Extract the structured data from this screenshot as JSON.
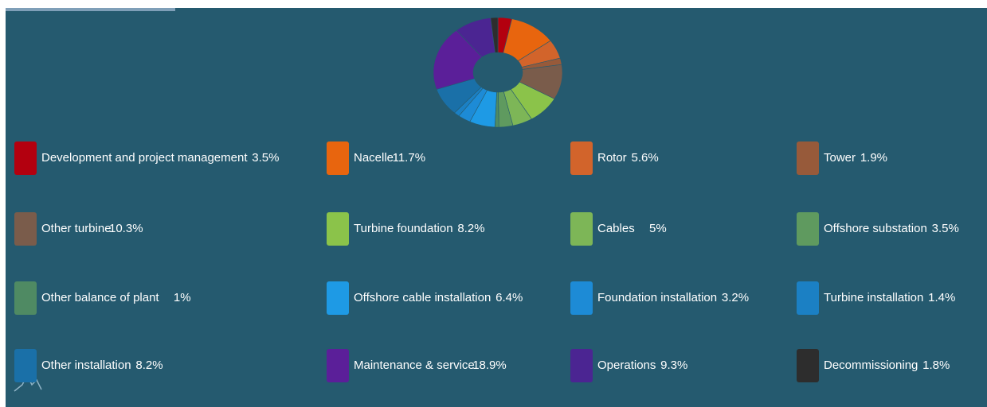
{
  "chart_data": {
    "type": "pie",
    "donut": true,
    "categories": [
      "Development and project management",
      "Nacelle",
      "Rotor",
      "Tower",
      "Other turbine",
      "Turbine foundation",
      "Cables",
      "Offshore substation",
      "Other balance of plant",
      "Offshore cable installation",
      "Foundation installation",
      "Turbine installation",
      "Other installation",
      "Maintenance & service",
      "Operations",
      "Decommissioning"
    ],
    "values": [
      3.5,
      11.7,
      5.6,
      1.9,
      10.3,
      8.2,
      5,
      3.5,
      1,
      6.4,
      3.2,
      1.4,
      8.2,
      18.9,
      9.3,
      1.8
    ],
    "value_labels": [
      "3.5%",
      "11.7%",
      "5.6%",
      "1.9%",
      "10.3%",
      "8.2%",
      "5%",
      "3.5%",
      "1%",
      "6.4%",
      "3.2%",
      "1.4%",
      "8.2%",
      "18.9%",
      "9.3%",
      "1.8%"
    ],
    "colors": [
      "#b3000f",
      "#e8650e",
      "#d2642b",
      "#975a3a",
      "#7a5c4b",
      "#8bc34a",
      "#7db657",
      "#5f9a5f",
      "#4f8a63",
      "#1e9ae5",
      "#1d8bd6",
      "#1b80c4",
      "#1a70a8",
      "#5b1f99",
      "#4b2592",
      "#2d2d2d"
    ]
  }
}
